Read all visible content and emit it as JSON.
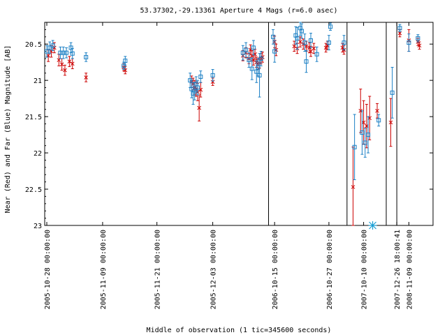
{
  "chart_data": {
    "type": "scatter",
    "title": "53.37302,-29.13361   Aperture 4 Mags (r=6.0 asec)",
    "xlabel": "Middle of observation (1 tic=345600 seconds)",
    "ylabel": "Near (Red) and Far (Blue) Magnitude [AB]",
    "ylim": [
      23.0,
      20.2
    ],
    "y_inverted": true,
    "grid": false,
    "colors": {
      "near": "#cc0000",
      "far": "#1a7fc4",
      "axis": "#000000"
    },
    "yticks": [
      "20.5",
      "21",
      "21.5",
      "22",
      "22.5",
      "23"
    ],
    "xticks": [
      "2005-10-28 00:00:00",
      "2005-11-09 00:00:00",
      "2005-11-21 00:00:00",
      "2005-12-03 00:00:00",
      "2006-10-15 00:00:00",
      "2006-10-27 00:00:00",
      "2007-10-10 00:00:00",
      "2007-12-26 18:00:41",
      "2008-11-09 00:00:00"
    ],
    "x_axis_note": "Compressed time axis with breaks between observing seasons; x expressed in tic units (1 tic = 345600 s) along the plotted axis.",
    "segment_breaks": [
      14.7,
      19.9,
      22.5,
      23.2
    ],
    "series": [
      {
        "name": "Near (Red)",
        "marker": "x",
        "points": [
          {
            "x": 0.1,
            "y": 20.66,
            "err": 0.08
          },
          {
            "x": 0.3,
            "y": 20.6,
            "err": 0.08
          },
          {
            "x": 0.5,
            "y": 20.55,
            "err": 0.07
          },
          {
            "x": 0.8,
            "y": 20.72,
            "err": 0.08
          },
          {
            "x": 1.0,
            "y": 20.78,
            "err": 0.08
          },
          {
            "x": 1.2,
            "y": 20.86,
            "err": 0.07
          },
          {
            "x": 1.5,
            "y": 20.74,
            "err": 0.07
          },
          {
            "x": 1.7,
            "y": 20.77,
            "err": 0.07
          },
          {
            "x": 2.6,
            "y": 20.96,
            "err": 0.06
          },
          {
            "x": 5.1,
            "y": 20.82,
            "err": 0.05
          },
          {
            "x": 5.2,
            "y": 20.86,
            "err": 0.05
          },
          {
            "x": 9.6,
            "y": 21.02,
            "err": 0.08
          },
          {
            "x": 9.7,
            "y": 21.05,
            "err": 0.08
          },
          {
            "x": 9.8,
            "y": 21.1,
            "err": 0.1
          },
          {
            "x": 9.9,
            "y": 21.12,
            "err": 0.1
          },
          {
            "x": 10.0,
            "y": 21.16,
            "err": 0.12
          },
          {
            "x": 10.1,
            "y": 21.38,
            "err": 0.18
          },
          {
            "x": 10.2,
            "y": 21.13,
            "err": 0.1
          },
          {
            "x": 11.0,
            "y": 21.02,
            "err": 0.05
          },
          {
            "x": 13.0,
            "y": 20.66,
            "err": 0.07
          },
          {
            "x": 13.2,
            "y": 20.62,
            "err": 0.07
          },
          {
            "x": 13.4,
            "y": 20.7,
            "err": 0.07
          },
          {
            "x": 13.5,
            "y": 20.58,
            "err": 0.07
          },
          {
            "x": 13.6,
            "y": 20.66,
            "err": 0.07
          },
          {
            "x": 13.7,
            "y": 20.72,
            "err": 0.07
          },
          {
            "x": 13.8,
            "y": 20.64,
            "err": 0.07
          },
          {
            "x": 13.9,
            "y": 20.75,
            "err": 0.07
          },
          {
            "x": 14.0,
            "y": 20.78,
            "err": 0.07
          },
          {
            "x": 14.1,
            "y": 20.76,
            "err": 0.07
          },
          {
            "x": 14.2,
            "y": 20.7,
            "err": 0.07
          },
          {
            "x": 14.3,
            "y": 20.68,
            "err": 0.07
          },
          {
            "x": 15.1,
            "y": 20.47,
            "err": 0.08
          },
          {
            "x": 15.2,
            "y": 20.58,
            "err": 0.08
          },
          {
            "x": 16.4,
            "y": 20.53,
            "err": 0.07
          },
          {
            "x": 16.6,
            "y": 20.56,
            "err": 0.07
          },
          {
            "x": 16.8,
            "y": 20.47,
            "err": 0.07
          },
          {
            "x": 17.0,
            "y": 20.5,
            "err": 0.07
          },
          {
            "x": 17.2,
            "y": 20.53,
            "err": 0.07
          },
          {
            "x": 17.4,
            "y": 20.55,
            "err": 0.07
          },
          {
            "x": 17.5,
            "y": 20.6,
            "err": 0.07
          },
          {
            "x": 17.7,
            "y": 20.56,
            "err": 0.07
          },
          {
            "x": 18.5,
            "y": 20.55,
            "err": 0.06
          },
          {
            "x": 18.6,
            "y": 20.52,
            "err": 0.06
          },
          {
            "x": 19.6,
            "y": 20.55,
            "err": 0.06
          },
          {
            "x": 19.7,
            "y": 20.58,
            "err": 0.06
          },
          {
            "x": 20.3,
            "y": 22.47,
            "err": 0.55
          },
          {
            "x": 20.8,
            "y": 21.42,
            "err": 0.3
          },
          {
            "x": 21.0,
            "y": 21.58,
            "err": 0.3
          },
          {
            "x": 21.2,
            "y": 21.63,
            "err": 0.3
          },
          {
            "x": 21.4,
            "y": 21.52,
            "err": 0.3
          },
          {
            "x": 21.9,
            "y": 21.42,
            "err": 0.1
          },
          {
            "x": 22.8,
            "y": 21.58,
            "err": 0.33
          },
          {
            "x": 23.4,
            "y": 20.35,
            "err": 0.05
          },
          {
            "x": 24.0,
            "y": 20.45,
            "err": 0.15
          },
          {
            "x": 24.6,
            "y": 20.47,
            "err": 0.05
          },
          {
            "x": 24.7,
            "y": 20.52,
            "err": 0.05
          }
        ]
      },
      {
        "name": "Far (Blue)",
        "marker": "square",
        "points": [
          {
            "x": 0.0,
            "y": 20.6,
            "err": 0.08
          },
          {
            "x": 0.2,
            "y": 20.55,
            "err": 0.08
          },
          {
            "x": 0.4,
            "y": 20.52,
            "err": 0.07
          },
          {
            "x": 0.9,
            "y": 20.62,
            "err": 0.08
          },
          {
            "x": 1.1,
            "y": 20.62,
            "err": 0.08
          },
          {
            "x": 1.3,
            "y": 20.62,
            "err": 0.07
          },
          {
            "x": 1.6,
            "y": 20.55,
            "err": 0.07
          },
          {
            "x": 1.7,
            "y": 20.63,
            "err": 0.07
          },
          {
            "x": 2.6,
            "y": 20.68,
            "err": 0.06
          },
          {
            "x": 5.1,
            "y": 20.8,
            "err": 0.05
          },
          {
            "x": 5.2,
            "y": 20.73,
            "err": 0.06
          },
          {
            "x": 9.5,
            "y": 21.0,
            "err": 0.1
          },
          {
            "x": 9.6,
            "y": 21.12,
            "err": 0.12
          },
          {
            "x": 9.7,
            "y": 21.18,
            "err": 0.15
          },
          {
            "x": 9.8,
            "y": 21.15,
            "err": 0.12
          },
          {
            "x": 9.9,
            "y": 21.05,
            "err": 0.1
          },
          {
            "x": 10.0,
            "y": 21.1,
            "err": 0.1
          },
          {
            "x": 10.2,
            "y": 20.95,
            "err": 0.08
          },
          {
            "x": 11.0,
            "y": 20.93,
            "err": 0.08
          },
          {
            "x": 13.0,
            "y": 20.62,
            "err": 0.1
          },
          {
            "x": 13.2,
            "y": 20.58,
            "err": 0.1
          },
          {
            "x": 13.4,
            "y": 20.72,
            "err": 0.1
          },
          {
            "x": 13.6,
            "y": 20.84,
            "err": 0.15
          },
          {
            "x": 13.7,
            "y": 20.55,
            "err": 0.1
          },
          {
            "x": 13.9,
            "y": 20.88,
            "err": 0.15
          },
          {
            "x": 14.0,
            "y": 20.82,
            "err": 0.12
          },
          {
            "x": 14.1,
            "y": 20.93,
            "err": 0.3
          },
          {
            "x": 14.2,
            "y": 20.7,
            "err": 0.1
          },
          {
            "x": 15.0,
            "y": 20.4,
            "err": 0.1
          },
          {
            "x": 15.1,
            "y": 20.6,
            "err": 0.15
          },
          {
            "x": 16.5,
            "y": 20.38,
            "err": 0.12
          },
          {
            "x": 16.6,
            "y": 20.42,
            "err": 0.15
          },
          {
            "x": 16.8,
            "y": 20.28,
            "err": 0.1
          },
          {
            "x": 16.9,
            "y": 20.32,
            "err": 0.1
          },
          {
            "x": 17.1,
            "y": 20.48,
            "err": 0.12
          },
          {
            "x": 17.2,
            "y": 20.74,
            "err": 0.15
          },
          {
            "x": 17.5,
            "y": 20.45,
            "err": 0.1
          },
          {
            "x": 17.9,
            "y": 20.64,
            "err": 0.1
          },
          {
            "x": 18.7,
            "y": 20.48,
            "err": 0.1
          },
          {
            "x": 18.8,
            "y": 20.26,
            "err": 0.05
          },
          {
            "x": 19.7,
            "y": 20.48,
            "err": 0.1
          },
          {
            "x": 20.4,
            "y": 21.92,
            "err": 0.45
          },
          {
            "x": 20.9,
            "y": 21.72,
            "err": 0.3
          },
          {
            "x": 21.1,
            "y": 21.86,
            "err": 0.2
          },
          {
            "x": 21.3,
            "y": 21.75,
            "err": 0.25
          },
          {
            "x": 22.0,
            "y": 21.55,
            "err": 0.08
          },
          {
            "x": 22.9,
            "y": 21.17,
            "err": 0.35
          },
          {
            "x": 23.4,
            "y": 20.28,
            "err": 0.05
          },
          {
            "x": 24.0,
            "y": 20.48,
            "err": 0.12
          },
          {
            "x": 24.6,
            "y": 20.42,
            "err": 0.05
          }
        ]
      }
    ],
    "star_marker": {
      "x": 21.6,
      "y": 23.0,
      "color": "#1a9fd4"
    }
  }
}
